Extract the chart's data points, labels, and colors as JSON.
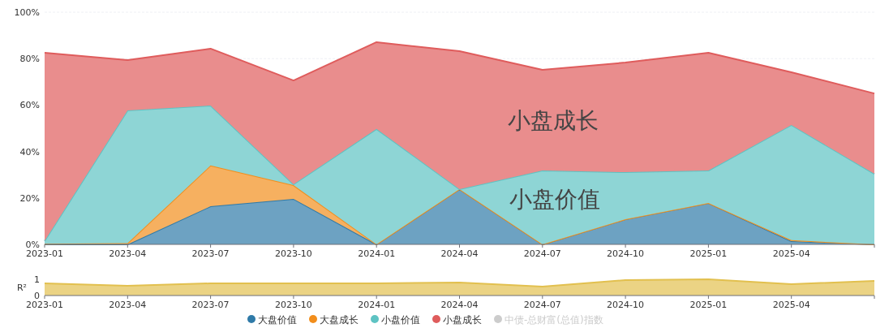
{
  "chart_data": [
    {
      "type": "area",
      "stacked": true,
      "grid": "y",
      "legend": "bottom",
      "categories": [
        "2023-01",
        "2023-04",
        "2023-07",
        "2023-10",
        "2024-01",
        "2024-04",
        "2024-07",
        "2024-10",
        "2025-01",
        "2025-04",
        null
      ],
      "ylim": [
        0,
        100
      ],
      "yticks": [
        {
          "value": 0,
          "label": "0%"
        },
        {
          "value": 20,
          "label": "20%"
        },
        {
          "value": 40,
          "label": "40%"
        },
        {
          "value": 60,
          "label": "60%"
        },
        {
          "value": 80,
          "label": "80%"
        },
        {
          "value": 100,
          "label": "100%"
        }
      ],
      "series": [
        {
          "name": "大盘价值",
          "color": "#2f7aa8",
          "values": [
            0,
            0,
            16.4,
            19.6,
            0,
            23.8,
            0,
            10.8,
            17.8,
            1.4,
            0
          ]
        },
        {
          "name": "大盘成长",
          "color": "#f28e1c",
          "values": [
            0.3,
            0.5,
            17.6,
            5.9,
            0,
            0,
            0,
            0,
            0,
            0.4,
            0
          ]
        },
        {
          "name": "小盘价值",
          "color": "#5ec3c3",
          "values": [
            1.2,
            57.2,
            25.8,
            0.4,
            49.7,
            0,
            31.8,
            20.3,
            14,
            49.6,
            30.4
          ]
        },
        {
          "name": "小盘成长",
          "color": "#df5c5c",
          "values": [
            81,
            21.7,
            24.5,
            44.7,
            37.4,
            59.4,
            43.4,
            47.2,
            50.7,
            22.7,
            34.6
          ]
        },
        {
          "name": "中债-总财富(总值)指数",
          "color": "#cccccc",
          "values": [
            null,
            null,
            null,
            null,
            null,
            null,
            null,
            null,
            null,
            null,
            null
          ]
        }
      ],
      "annotations": [
        "小盘成长",
        "小盘价值"
      ]
    },
    {
      "type": "area",
      "ylabel": "R²",
      "categories": [
        "2023-01",
        "2023-04",
        "2023-07",
        "2023-10",
        "2024-01",
        "2024-04",
        "2024-07",
        "2024-10",
        "2025-01",
        "2025-04",
        null
      ],
      "ylim": [
        0,
        1
      ],
      "yticks": [
        0,
        1
      ],
      "series": [
        {
          "color": "#e2c04f",
          "values": [
            0.75,
            0.6,
            0.75,
            0.75,
            0.75,
            0.8,
            0.55,
            0.95,
            1.0,
            0.7,
            0.9
          ]
        }
      ]
    }
  ]
}
